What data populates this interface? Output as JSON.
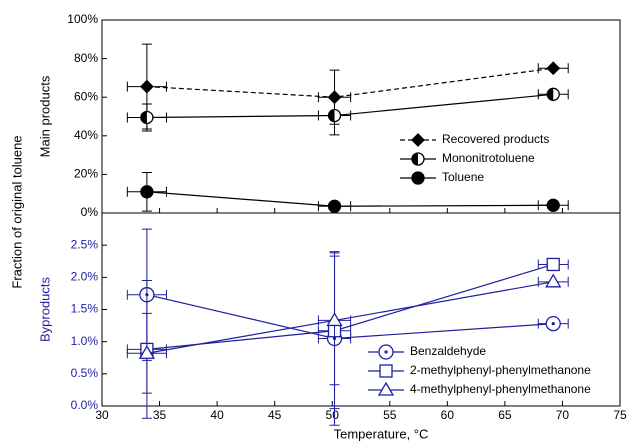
{
  "figure": {
    "ylabel": "Fraction of original toluene"
  },
  "chart_data": [
    {
      "type": "scatter",
      "ylabel": "Main products",
      "x": [
        33.9,
        50.2,
        69.2
      ],
      "xlim": [
        30,
        75
      ],
      "xticks": [
        30,
        35,
        40,
        45,
        50,
        55,
        60,
        65,
        70,
        75
      ],
      "ylim": [
        0,
        100
      ],
      "yticks": [
        {
          "value": 0,
          "label": "0%"
        },
        {
          "value": 20,
          "label": "20%"
        },
        {
          "value": 40,
          "label": "40%"
        },
        {
          "value": 60,
          "label": "60%"
        },
        {
          "value": 80,
          "label": "80%"
        },
        {
          "value": 100,
          "label": "100%"
        }
      ],
      "tick_color": "#000000",
      "legend": "right",
      "series": [
        {
          "name": "Recovered products",
          "color": "#000000",
          "marker": "diamond",
          "dashed": true,
          "values": [
            65.5,
            60,
            75
          ],
          "yerr": [
            22,
            14,
            0
          ],
          "xerr": [
            1.7,
            1.4,
            1.3
          ]
        },
        {
          "name": "Mononitrotoluene",
          "color": "#000000",
          "marker": "half-circle",
          "dashed": false,
          "values": [
            49.5,
            50.5,
            61.5
          ],
          "yerr": [
            7,
            10,
            2
          ],
          "xerr": [
            1.7,
            1.4,
            1.3
          ]
        },
        {
          "name": "Toluene",
          "color": "#000000",
          "marker": "filled-circle",
          "dashed": false,
          "values": [
            11,
            3.5,
            4
          ],
          "yerr": [
            10,
            0,
            0
          ],
          "xerr": [
            1.7,
            1.4,
            1.3
          ]
        }
      ]
    },
    {
      "type": "scatter",
      "ylabel": "Byproducts",
      "xlabel": "Temperature, °C",
      "x": [
        33.9,
        50.2,
        69.2
      ],
      "xlim": [
        30,
        75
      ],
      "xticks": [
        30,
        35,
        40,
        45,
        50,
        55,
        60,
        65,
        70,
        75
      ],
      "ylim": [
        0,
        3
      ],
      "yticks": [
        {
          "value": 0,
          "label": "0.0%"
        },
        {
          "value": 0.5,
          "label": "0.5%"
        },
        {
          "value": 1,
          "label": "1.0%"
        },
        {
          "value": 1.5,
          "label": "1.5%"
        },
        {
          "value": 2,
          "label": "2.0%"
        },
        {
          "value": 2.5,
          "label": "2.5%"
        }
      ],
      "tick_color": "#1f1f9e",
      "legend": "lower right",
      "series": [
        {
          "name": "Benzaldehyde",
          "color": "#1f1f9e",
          "marker": "dot-circle",
          "dashed": false,
          "values": [
            1.73,
            1.05,
            1.28
          ],
          "yerr": [
            1.02,
            1.35,
            0
          ],
          "xerr": [
            1.7,
            1.4,
            1.3
          ]
        },
        {
          "name": "2-methylphenyl-phenylmethanone",
          "color": "#1f1f9e",
          "marker": "square",
          "dashed": false,
          "values": [
            0.88,
            1.17,
            2.2
          ],
          "yerr": [
            1.07,
            1.21,
            0
          ],
          "xerr": [
            1.7,
            1.4,
            1.3
          ]
        },
        {
          "name": "4-methylphenyl-phenylmethanone",
          "color": "#1f1f9e",
          "marker": "triangle",
          "dashed": false,
          "values": [
            0.82,
            1.33,
            1.93
          ],
          "yerr": [
            0.62,
            1.0,
            0
          ],
          "xerr": [
            1.7,
            1.4,
            1.3
          ]
        }
      ]
    }
  ]
}
